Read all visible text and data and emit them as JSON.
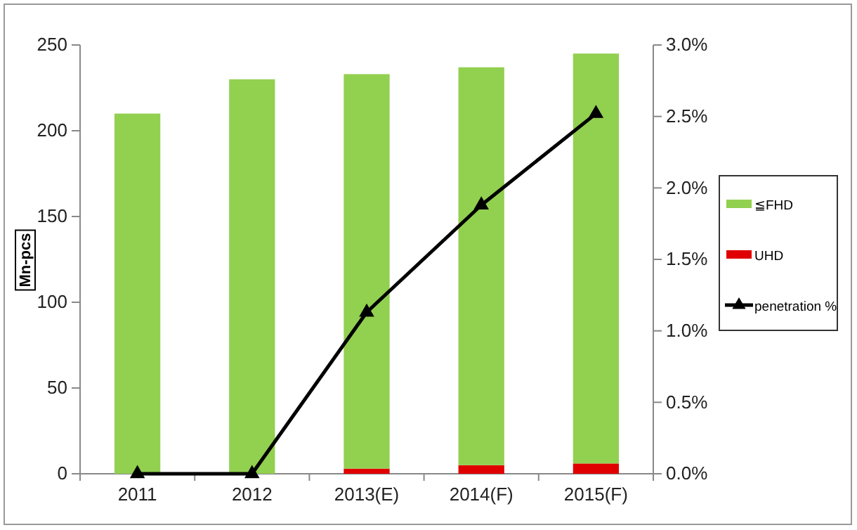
{
  "chart_data": {
    "type": "bar",
    "stacked": true,
    "categories": [
      "2011",
      "2012",
      "2013(E)",
      "2014(F)",
      "2015(F)"
    ],
    "series": [
      {
        "name": "UHD",
        "color": "#e00000",
        "values": [
          0,
          0,
          3,
          5,
          6
        ]
      },
      {
        "name": "≦FHD",
        "color": "#92d050",
        "values": [
          210,
          230,
          230,
          232,
          239
        ]
      },
      {
        "name": "penetration %",
        "type": "line",
        "axis": "y2",
        "color": "#000000",
        "values": [
          0,
          0,
          1.13,
          1.88,
          2.52
        ]
      }
    ],
    "ylabel": "Mn-pcs",
    "ylim": [
      0,
      250
    ],
    "yticks": [
      0,
      50,
      100,
      150,
      200,
      250
    ],
    "y2lim": [
      0,
      3
    ],
    "y2ticks": [
      {
        "value": 0,
        "label": "0.0%"
      },
      {
        "value": 0.5,
        "label": "0.5%"
      },
      {
        "value": 1,
        "label": "1.0%"
      },
      {
        "value": 1.5,
        "label": "1.5%"
      },
      {
        "value": 2,
        "label": "2.0%"
      },
      {
        "value": 2.5,
        "label": "2.5%"
      },
      {
        "value": 3,
        "label": "3.0%"
      }
    ],
    "legend": "right",
    "marker": "triangle",
    "grid": false
  }
}
